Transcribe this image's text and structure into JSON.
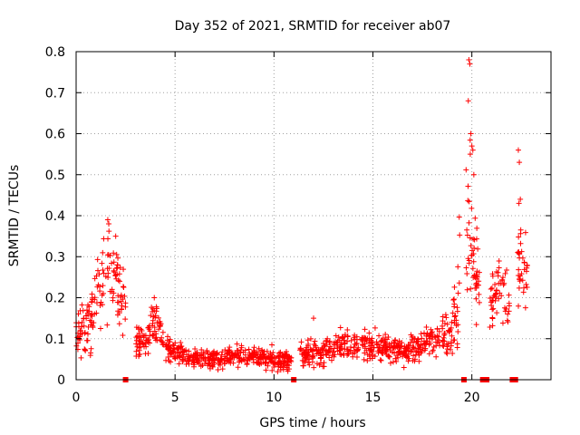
{
  "chart_data": {
    "type": "scatter",
    "title": "Day 352 of 2021, SRMTID for receiver ab07",
    "xlabel": "GPS time / hours",
    "ylabel": "SRMTID / TECUs",
    "xlim": [
      0,
      24
    ],
    "ylim": [
      0,
      0.8
    ],
    "x_ticks": [
      0,
      5,
      10,
      15,
      20
    ],
    "y_ticks": [
      0,
      0.1,
      0.2,
      0.3,
      0.4,
      0.5,
      0.6,
      0.7,
      0.8
    ],
    "grid": true,
    "marker": "+",
    "series_color": "#ff0000",
    "envelope": [
      [
        0.0,
        0.11,
        0.05
      ],
      [
        0.5,
        0.12,
        0.05
      ],
      [
        1.0,
        0.2,
        0.08
      ],
      [
        1.5,
        0.28,
        0.1
      ],
      [
        2.0,
        0.25,
        0.08
      ],
      [
        2.4,
        0.2,
        0.06
      ],
      [
        3.0,
        0.1,
        0.04
      ],
      [
        3.5,
        0.09,
        0.03
      ],
      [
        4.0,
        0.14,
        0.05
      ],
      [
        4.5,
        0.08,
        0.03
      ],
      [
        5.0,
        0.07,
        0.025
      ],
      [
        6.0,
        0.05,
        0.02
      ],
      [
        7.0,
        0.05,
        0.02
      ],
      [
        8.0,
        0.055,
        0.02
      ],
      [
        9.0,
        0.06,
        0.02
      ],
      [
        10.0,
        0.05,
        0.02
      ],
      [
        10.9,
        0.045,
        0.02
      ],
      [
        11.5,
        0.06,
        0.025
      ],
      [
        12.5,
        0.07,
        0.03
      ],
      [
        13.5,
        0.09,
        0.03
      ],
      [
        14.5,
        0.08,
        0.03
      ],
      [
        15.5,
        0.08,
        0.03
      ],
      [
        16.5,
        0.07,
        0.025
      ],
      [
        17.5,
        0.08,
        0.03
      ],
      [
        18.0,
        0.1,
        0.03
      ],
      [
        18.5,
        0.11,
        0.04
      ],
      [
        19.0,
        0.1,
        0.05
      ],
      [
        19.3,
        0.22,
        0.1
      ],
      [
        19.6,
        0.35,
        0.2
      ],
      [
        19.8,
        0.45,
        0.25
      ],
      [
        20.1,
        0.3,
        0.12
      ],
      [
        20.5,
        0.2,
        0.07
      ],
      [
        21.0,
        0.2,
        0.06
      ],
      [
        21.4,
        0.22,
        0.06
      ],
      [
        21.8,
        0.2,
        0.06
      ],
      [
        22.1,
        0.22,
        0.06
      ],
      [
        22.5,
        0.28,
        0.1
      ],
      [
        22.8,
        0.25,
        0.08
      ]
    ],
    "gaps": [
      [
        2.5,
        3.0
      ],
      [
        10.9,
        11.3
      ],
      [
        19.4,
        19.7
      ],
      [
        20.4,
        20.9
      ],
      [
        21.9,
        22.3
      ]
    ],
    "highlight_points": [
      [
        19.85,
        0.78
      ],
      [
        19.9,
        0.77
      ],
      [
        19.82,
        0.68
      ],
      [
        19.95,
        0.6
      ],
      [
        20.0,
        0.57
      ],
      [
        20.05,
        0.56
      ],
      [
        20.1,
        0.5
      ],
      [
        19.92,
        0.55
      ],
      [
        22.35,
        0.56
      ],
      [
        22.4,
        0.53
      ],
      [
        22.45,
        0.44
      ],
      [
        22.38,
        0.43
      ],
      [
        1.6,
        0.39
      ],
      [
        1.65,
        0.38
      ],
      [
        2.0,
        0.35
      ],
      [
        0.55,
        0.17
      ],
      [
        3.95,
        0.2
      ],
      [
        12.0,
        0.15
      ]
    ],
    "zero_markers": [
      2.5,
      11.0,
      19.6,
      20.55,
      20.75,
      22.05,
      22.2
    ],
    "point_count": 1400
  }
}
